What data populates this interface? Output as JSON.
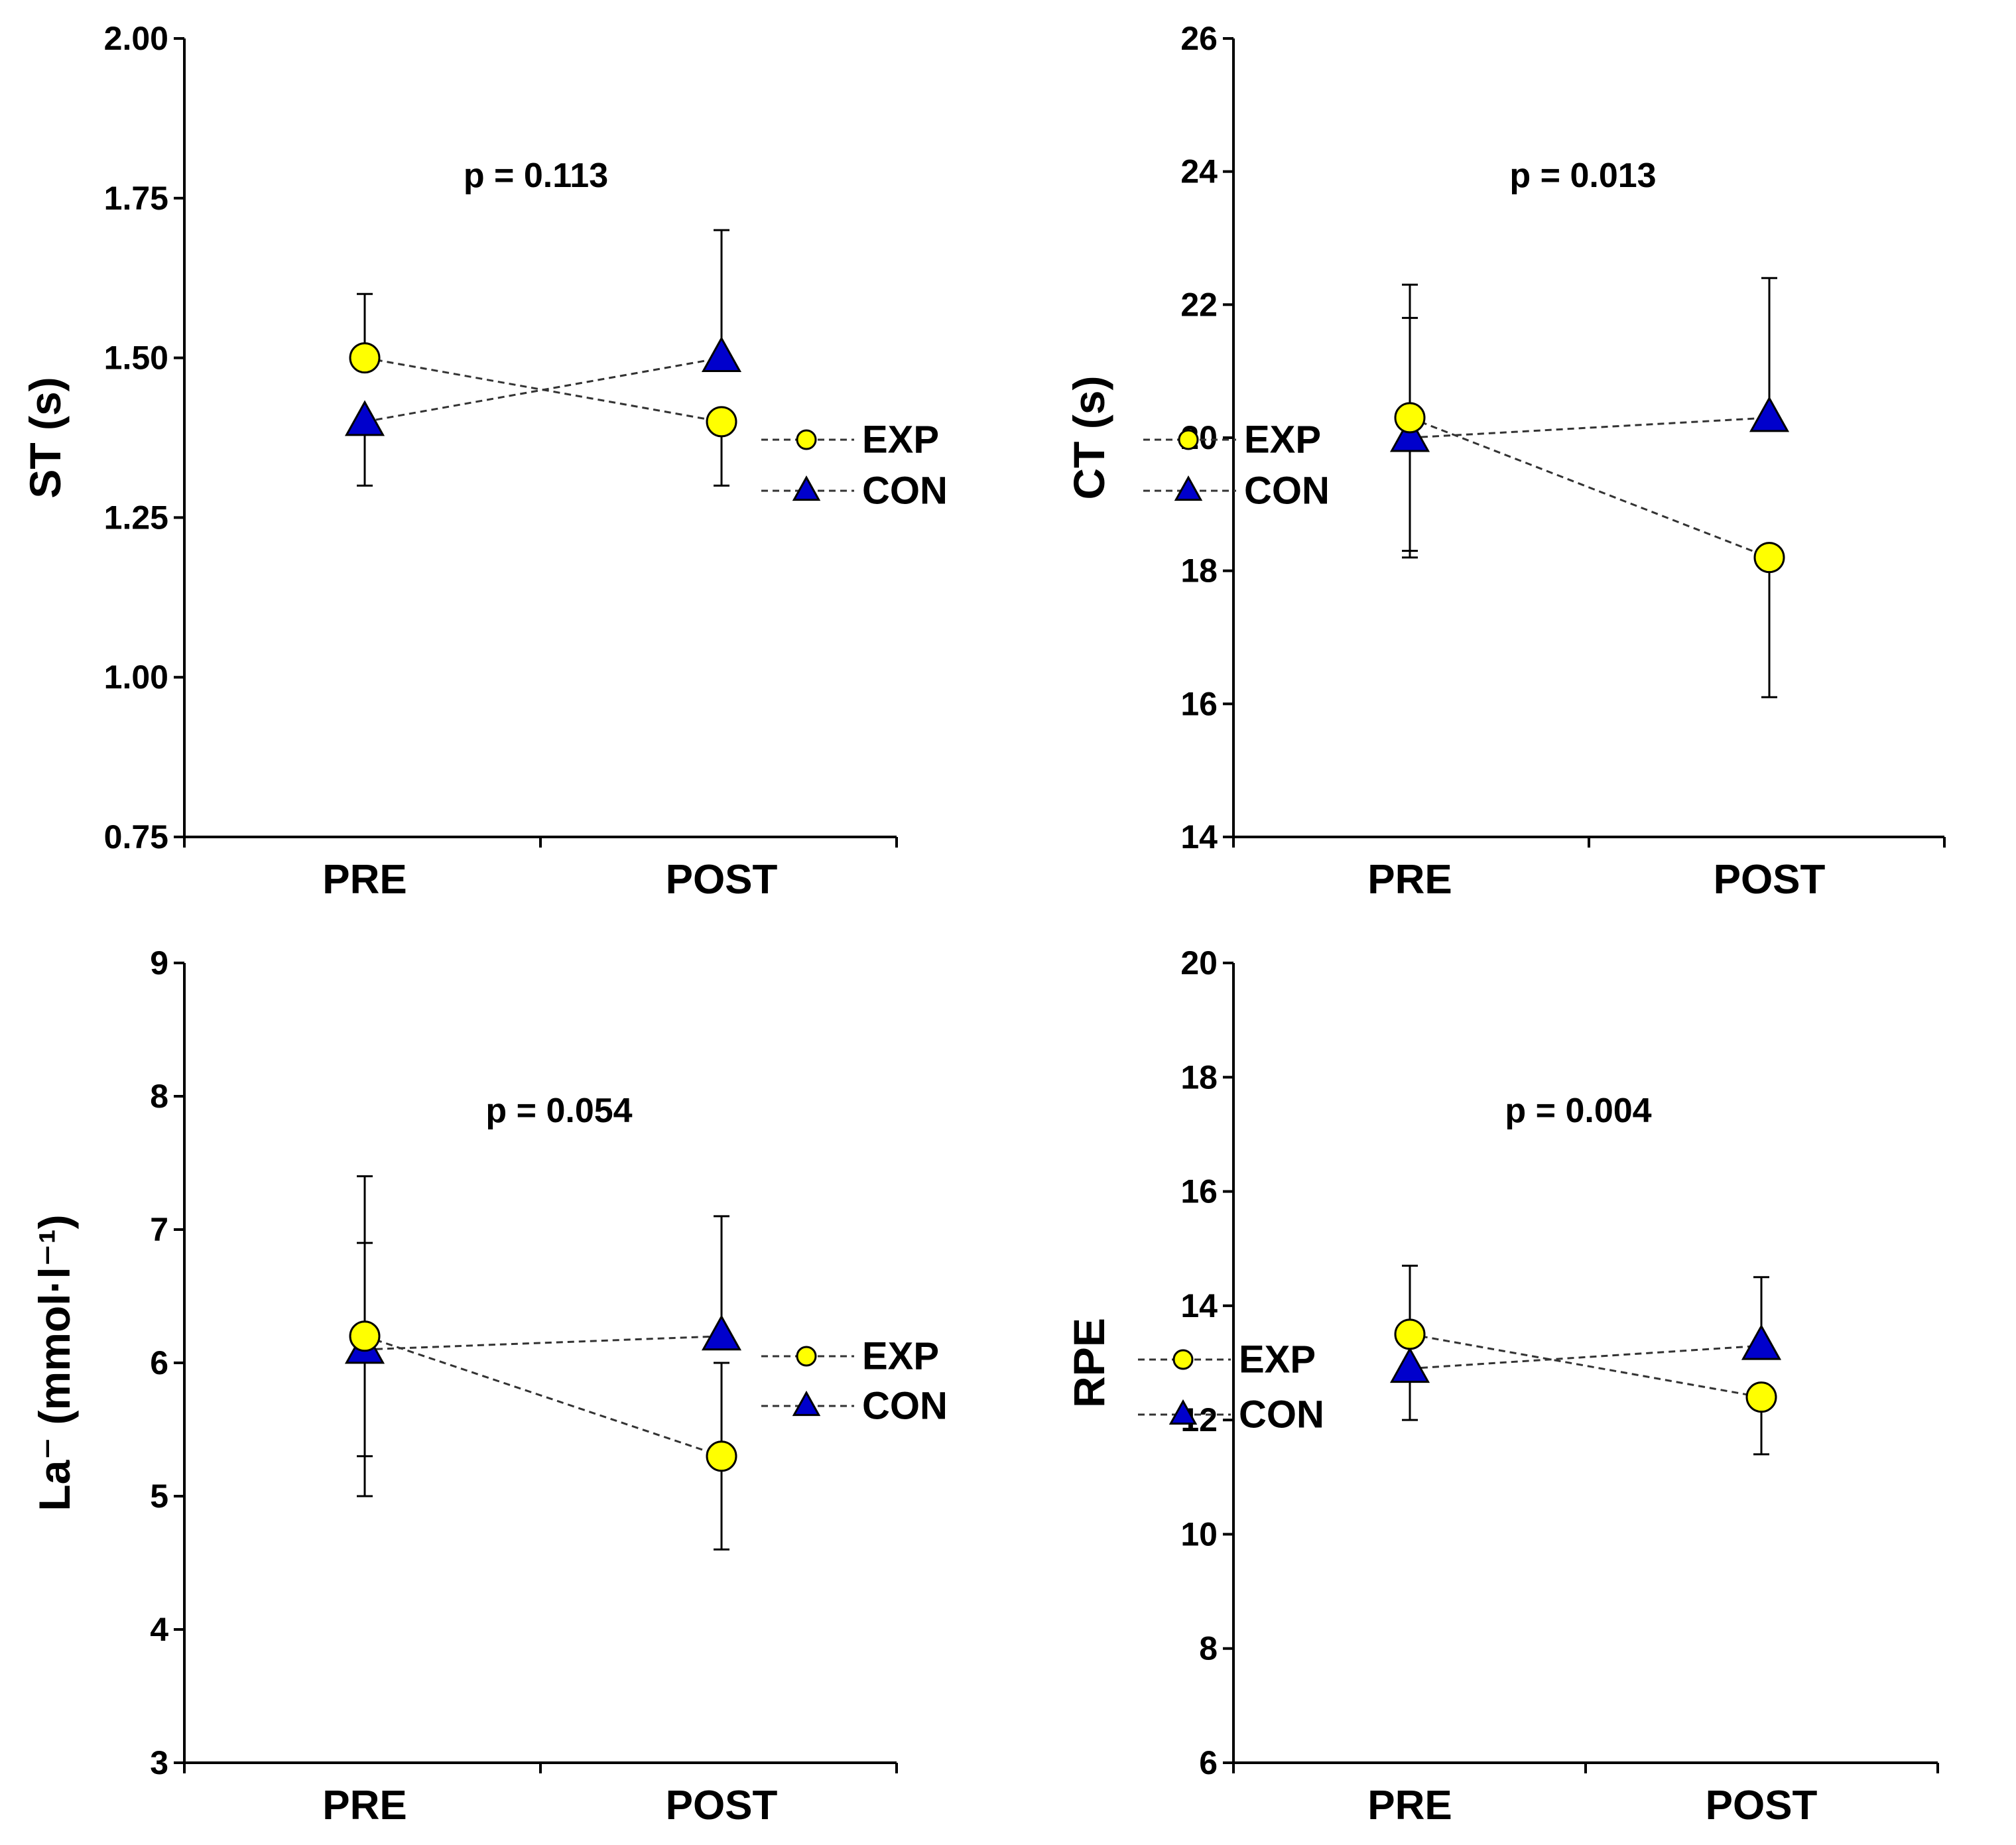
{
  "colors": {
    "exp_fill": "#ffff00",
    "con_fill": "#0000cc",
    "marker_stroke": "#000000",
    "connector": "#333333"
  },
  "chart_data": [
    {
      "type": "scatter",
      "panel": "top-left",
      "title": "",
      "xlabel": "",
      "ylabel": "ST (s)",
      "categories": [
        "PRE",
        "POST"
      ],
      "ylim": [
        0.75,
        2.0
      ],
      "yticks": [
        0.75,
        1.0,
        1.25,
        1.5,
        1.75,
        2.0
      ],
      "ytick_labels": [
        "0.75",
        "1.00",
        "1.25",
        "1.50",
        "1.75",
        "2.00"
      ],
      "annotation": "p = 0.113",
      "legend_position": "right",
      "series": [
        {
          "name": "EXP",
          "marker": "circle",
          "values": [
            1.5,
            1.4
          ],
          "error": [
            0.1,
            0.1
          ],
          "err_dir": [
            "up",
            "down"
          ]
        },
        {
          "name": "CON",
          "marker": "triangle",
          "values": [
            1.4,
            1.5
          ],
          "error": [
            0.1,
            0.2
          ],
          "err_dir": [
            "down",
            "up"
          ]
        }
      ]
    },
    {
      "type": "scatter",
      "panel": "top-right",
      "title": "",
      "xlabel": "",
      "ylabel": "CT (s)",
      "categories": [
        "PRE",
        "POST"
      ],
      "ylim": [
        14,
        26
      ],
      "yticks": [
        14,
        16,
        18,
        20,
        22,
        24,
        26
      ],
      "ytick_labels": [
        "14",
        "16",
        "18",
        "20",
        "22",
        "24",
        "26"
      ],
      "annotation": "p = 0.013",
      "legend_position": "right",
      "series": [
        {
          "name": "EXP",
          "marker": "circle",
          "values": [
            20.3,
            18.2
          ],
          "error": [
            2.0,
            2.1
          ],
          "err_dir": [
            "both",
            "down"
          ]
        },
        {
          "name": "CON",
          "marker": "triangle",
          "values": [
            20.0,
            20.3
          ],
          "error": [
            1.8,
            2.1
          ],
          "err_dir": [
            "both",
            "up"
          ]
        }
      ]
    },
    {
      "type": "scatter",
      "panel": "bottom-left",
      "title": "",
      "xlabel": "",
      "ylabel": "La⁻ (mmol·l⁻¹)",
      "categories": [
        "PRE",
        "POST"
      ],
      "ylim": [
        3,
        9
      ],
      "yticks": [
        3,
        4,
        5,
        6,
        7,
        8,
        9
      ],
      "ytick_labels": [
        "3",
        "4",
        "5",
        "6",
        "7",
        "8",
        "9"
      ],
      "annotation": "p = 0.054",
      "legend_position": "right",
      "series": [
        {
          "name": "EXP",
          "marker": "circle",
          "values": [
            6.2,
            5.3
          ],
          "error": [
            1.2,
            0.7
          ],
          "err_dir": [
            "both",
            "both"
          ]
        },
        {
          "name": "CON",
          "marker": "triangle",
          "values": [
            6.1,
            6.2
          ],
          "error": [
            0.8,
            0.9
          ],
          "err_dir": [
            "both",
            "up"
          ]
        }
      ]
    },
    {
      "type": "scatter",
      "panel": "bottom-right",
      "title": "",
      "xlabel": "",
      "ylabel": "RPE",
      "categories": [
        "PRE",
        "POST"
      ],
      "ylim": [
        6,
        20
      ],
      "yticks": [
        6,
        8,
        10,
        12,
        14,
        16,
        18,
        20
      ],
      "ytick_labels": [
        "6",
        "8",
        "10",
        "12",
        "14",
        "16",
        "18",
        "20"
      ],
      "annotation": "p = 0.004",
      "legend_position": "right",
      "series": [
        {
          "name": "EXP",
          "marker": "circle",
          "values": [
            13.5,
            12.4
          ],
          "error": [
            1.2,
            1.0
          ],
          "err_dir": [
            "up",
            "down"
          ]
        },
        {
          "name": "CON",
          "marker": "triangle",
          "values": [
            12.9,
            13.3
          ],
          "error": [
            0.9,
            1.2
          ],
          "err_dir": [
            "down",
            "up"
          ]
        }
      ]
    }
  ]
}
